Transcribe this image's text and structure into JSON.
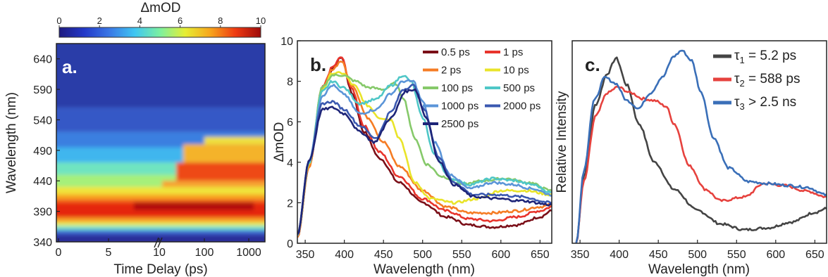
{
  "chart_data": [
    {
      "type": "heatmap",
      "panel_label": "a.",
      "xlabel": "Time Delay (ps)",
      "ylabel": "Wavelength (nm)",
      "x_tick_labels": [
        "0",
        "5",
        "10",
        "100",
        "1000"
      ],
      "y_tick_labels": [
        "340",
        "390",
        "440",
        "490",
        "540",
        "590",
        "640"
      ],
      "ylim": [
        340,
        665
      ],
      "colorbar": {
        "title": "ΔmOD",
        "ticks": [
          "0",
          "2",
          "4",
          "6",
          "8",
          "10"
        ],
        "range": [
          0,
          10
        ],
        "colors": [
          "#1e1a80",
          "#2338c8",
          "#3a78e6",
          "#3fc6f2",
          "#7cf0a0",
          "#e6ee34",
          "#f7a51c",
          "#ee3a12",
          "#9e0a0a"
        ]
      }
    },
    {
      "type": "line",
      "panel_label": "b.",
      "xlabel": "Wavelength (nm)",
      "ylabel": "ΔmOD",
      "xlim": [
        340,
        665
      ],
      "ylim": [
        0,
        10
      ],
      "x_ticks": [
        350,
        400,
        450,
        500,
        550,
        600,
        650
      ],
      "y_ticks": [
        0,
        2,
        4,
        6,
        8,
        10
      ],
      "legend_position": "top-right",
      "series": [
        {
          "name": "0.5 ps",
          "color": "#7b0f18",
          "points": [
            [
              340,
              0.3
            ],
            [
              355,
              3.8
            ],
            [
              372,
              7.6
            ],
            [
              385,
              8.6
            ],
            [
              396,
              9.2
            ],
            [
              410,
              7.4
            ],
            [
              425,
              5.5
            ],
            [
              445,
              4.2
            ],
            [
              470,
              3.0
            ],
            [
              500,
              2.0
            ],
            [
              530,
              1.3
            ],
            [
              560,
              0.9
            ],
            [
              590,
              0.8
            ],
            [
              620,
              0.9
            ],
            [
              650,
              1.3
            ],
            [
              665,
              1.6
            ]
          ]
        },
        {
          "name": "1 ps",
          "color": "#e8342c",
          "points": [
            [
              340,
              0.3
            ],
            [
              355,
              3.8
            ],
            [
              372,
              7.7
            ],
            [
              385,
              8.7
            ],
            [
              396,
              9.2
            ],
            [
              410,
              7.6
            ],
            [
              425,
              5.8
            ],
            [
              445,
              4.5
            ],
            [
              470,
              3.3
            ],
            [
              500,
              2.2
            ],
            [
              530,
              1.6
            ],
            [
              560,
              1.2
            ],
            [
              590,
              1.1
            ],
            [
              620,
              1.3
            ],
            [
              650,
              1.6
            ],
            [
              665,
              1.8
            ]
          ]
        },
        {
          "name": "2 ps",
          "color": "#f57c24",
          "points": [
            [
              340,
              0.3
            ],
            [
              355,
              3.8
            ],
            [
              372,
              7.6
            ],
            [
              385,
              8.6
            ],
            [
              396,
              9.0
            ],
            [
              410,
              7.8
            ],
            [
              430,
              6.2
            ],
            [
              450,
              5.0
            ],
            [
              470,
              3.8
            ],
            [
              500,
              2.6
            ],
            [
              530,
              1.8
            ],
            [
              560,
              1.5
            ],
            [
              590,
              1.5
            ],
            [
              620,
              1.6
            ],
            [
              650,
              1.8
            ],
            [
              665,
              1.9
            ]
          ]
        },
        {
          "name": "10 ps",
          "color": "#e9e42a",
          "points": [
            [
              340,
              0.4
            ],
            [
              355,
              3.9
            ],
            [
              372,
              7.6
            ],
            [
              385,
              8.4
            ],
            [
              398,
              8.4
            ],
            [
              412,
              7.8
            ],
            [
              430,
              6.8
            ],
            [
              445,
              6.2
            ],
            [
              460,
              6.1
            ],
            [
              470,
              5.2
            ],
            [
              490,
              3.0
            ],
            [
              510,
              2.2
            ],
            [
              540,
              2.0
            ],
            [
              570,
              2.2
            ],
            [
              600,
              2.6
            ],
            [
              630,
              2.6
            ],
            [
              665,
              2.4
            ]
          ]
        },
        {
          "name": "100 ps",
          "color": "#86c96a",
          "points": [
            [
              340,
              0.4
            ],
            [
              355,
              4.0
            ],
            [
              372,
              7.7
            ],
            [
              385,
              8.3
            ],
            [
              398,
              8.3
            ],
            [
              415,
              8.0
            ],
            [
              430,
              7.7
            ],
            [
              450,
              7.6
            ],
            [
              465,
              7.9
            ],
            [
              475,
              7.2
            ],
            [
              490,
              5.2
            ],
            [
              505,
              3.9
            ],
            [
              525,
              3.3
            ],
            [
              550,
              2.9
            ],
            [
              580,
              3.1
            ],
            [
              605,
              3.2
            ],
            [
              635,
              3.0
            ],
            [
              665,
              2.6
            ]
          ]
        },
        {
          "name": "500 ps",
          "color": "#4fc7c7",
          "points": [
            [
              340,
              0.4
            ],
            [
              355,
              4.0
            ],
            [
              372,
              7.5
            ],
            [
              385,
              8.0
            ],
            [
              398,
              7.7
            ],
            [
              420,
              6.9
            ],
            [
              440,
              7.1
            ],
            [
              460,
              7.8
            ],
            [
              475,
              8.3
            ],
            [
              485,
              8.0
            ],
            [
              500,
              6.2
            ],
            [
              515,
              4.4
            ],
            [
              535,
              3.2
            ],
            [
              560,
              2.9
            ],
            [
              590,
              3.2
            ],
            [
              615,
              3.1
            ],
            [
              640,
              2.9
            ],
            [
              665,
              2.5
            ]
          ]
        },
        {
          "name": "1000 ps",
          "color": "#5b95d8",
          "points": [
            [
              340,
              0.4
            ],
            [
              355,
              4.1
            ],
            [
              372,
              7.3
            ],
            [
              385,
              7.8
            ],
            [
              398,
              7.4
            ],
            [
              420,
              6.4
            ],
            [
              440,
              6.6
            ],
            [
              460,
              7.4
            ],
            [
              475,
              8.0
            ],
            [
              488,
              8.0
            ],
            [
              500,
              7.0
            ],
            [
              515,
              5.0
            ],
            [
              535,
              3.4
            ],
            [
              560,
              2.7
            ],
            [
              590,
              3.0
            ],
            [
              615,
              2.9
            ],
            [
              640,
              2.7
            ],
            [
              665,
              2.4
            ]
          ]
        },
        {
          "name": "2000 ps",
          "color": "#3a58b0",
          "points": [
            [
              340,
              0.4
            ],
            [
              355,
              4.1
            ],
            [
              372,
              6.9
            ],
            [
              385,
              7.0
            ],
            [
              400,
              6.6
            ],
            [
              420,
              5.8
            ],
            [
              440,
              5.2
            ],
            [
              460,
              6.5
            ],
            [
              475,
              7.6
            ],
            [
              488,
              7.8
            ],
            [
              502,
              6.6
            ],
            [
              520,
              4.3
            ],
            [
              540,
              3.0
            ],
            [
              565,
              2.4
            ],
            [
              595,
              2.4
            ],
            [
              625,
              2.3
            ],
            [
              665,
              2.0
            ]
          ]
        },
        {
          "name": "2500 ps",
          "color": "#1e2578",
          "points": [
            [
              340,
              0.4
            ],
            [
              355,
              4.1
            ],
            [
              372,
              6.6
            ],
            [
              385,
              6.7
            ],
            [
              400,
              6.4
            ],
            [
              420,
              5.5
            ],
            [
              438,
              5.0
            ],
            [
              460,
              6.2
            ],
            [
              478,
              7.5
            ],
            [
              490,
              7.6
            ],
            [
              505,
              6.2
            ],
            [
              520,
              4.1
            ],
            [
              540,
              2.9
            ],
            [
              565,
              2.3
            ],
            [
              595,
              2.2
            ],
            [
              625,
              2.1
            ],
            [
              665,
              1.9
            ]
          ]
        }
      ]
    },
    {
      "type": "line",
      "panel_label": "c.",
      "xlabel": "Wavelength (nm)",
      "ylabel": "Relative Intensity",
      "xlim": [
        340,
        665
      ],
      "ylim": [
        0,
        1.05
      ],
      "x_ticks": [
        350,
        400,
        450,
        500,
        550,
        600,
        650
      ],
      "legend_position": "top-right",
      "series": [
        {
          "name_symbol": "τ",
          "name_sub": "1",
          "name_rest": " = 5.2 ps",
          "color": "#444444",
          "points": [
            [
              345,
              0.0
            ],
            [
              355,
              0.35
            ],
            [
              370,
              0.72
            ],
            [
              385,
              0.88
            ],
            [
              396,
              0.96
            ],
            [
              410,
              0.82
            ],
            [
              425,
              0.62
            ],
            [
              445,
              0.42
            ],
            [
              470,
              0.28
            ],
            [
              500,
              0.17
            ],
            [
              530,
              0.1
            ],
            [
              560,
              0.07
            ],
            [
              590,
              0.08
            ],
            [
              620,
              0.11
            ],
            [
              650,
              0.16
            ],
            [
              665,
              0.18
            ]
          ]
        },
        {
          "name_symbol": "τ",
          "name_sub": "2",
          "name_rest": " = 588 ps",
          "color": "#e6423e",
          "points": [
            [
              345,
              0.0
            ],
            [
              355,
              0.32
            ],
            [
              370,
              0.66
            ],
            [
              385,
              0.78
            ],
            [
              398,
              0.81
            ],
            [
              415,
              0.78
            ],
            [
              430,
              0.75
            ],
            [
              445,
              0.74
            ],
            [
              460,
              0.71
            ],
            [
              470,
              0.62
            ],
            [
              490,
              0.4
            ],
            [
              510,
              0.28
            ],
            [
              530,
              0.22
            ],
            [
              560,
              0.24
            ],
            [
              585,
              0.31
            ],
            [
              610,
              0.3
            ],
            [
              640,
              0.27
            ],
            [
              665,
              0.24
            ]
          ]
        },
        {
          "name_symbol": "τ",
          "name_sub": "3",
          "name_rest": " > 2.5 ns",
          "color": "#3a6fb8",
          "points": [
            [
              345,
              0.0
            ],
            [
              355,
              0.38
            ],
            [
              368,
              0.74
            ],
            [
              382,
              0.86
            ],
            [
              395,
              0.83
            ],
            [
              410,
              0.74
            ],
            [
              425,
              0.7
            ],
            [
              440,
              0.78
            ],
            [
              455,
              0.86
            ],
            [
              470,
              0.97
            ],
            [
              480,
              1.0
            ],
            [
              492,
              0.95
            ],
            [
              505,
              0.78
            ],
            [
              520,
              0.55
            ],
            [
              540,
              0.39
            ],
            [
              565,
              0.32
            ],
            [
              590,
              0.31
            ],
            [
              615,
              0.3
            ],
            [
              640,
              0.29
            ],
            [
              665,
              0.25
            ]
          ]
        }
      ]
    }
  ]
}
